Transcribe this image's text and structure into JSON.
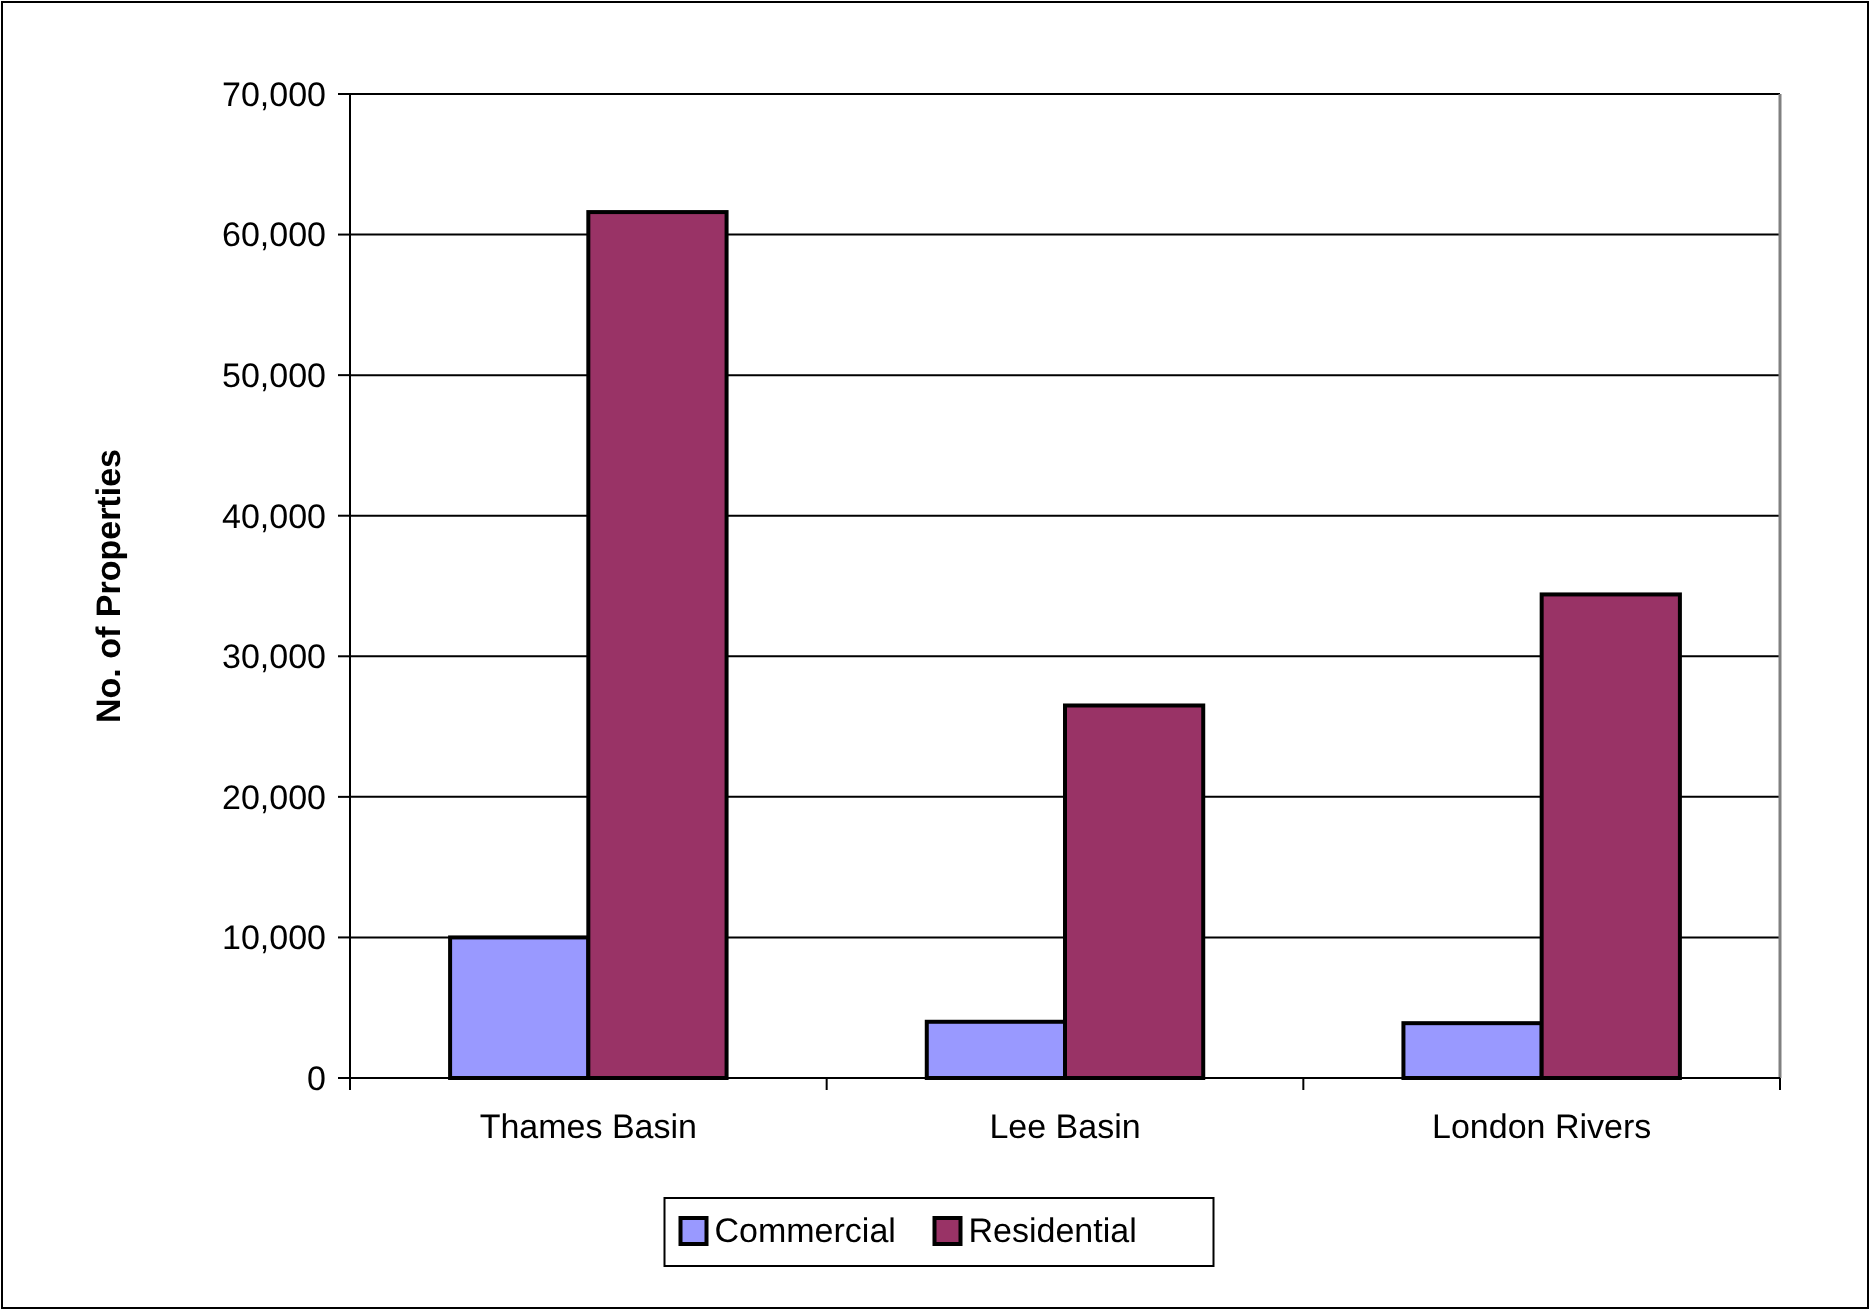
{
  "chart_data": {
    "type": "bar",
    "ylabel": "No. of Properties",
    "categories": [
      "Thames Basin",
      "Lee Basin",
      "London Rivers"
    ],
    "series": [
      {
        "name": "Commercial",
        "color": "#9999ff",
        "values": [
          10000,
          4000,
          3900
        ]
      },
      {
        "name": "Residential",
        "color": "#993366",
        "values": [
          61600,
          26500,
          34400
        ]
      }
    ],
    "ylim": [
      0,
      70000
    ],
    "yticks": [
      {
        "value": 0,
        "label": "0"
      },
      {
        "value": 10000,
        "label": "10,000"
      },
      {
        "value": 20000,
        "label": "20,000"
      },
      {
        "value": 30000,
        "label": "30,000"
      },
      {
        "value": 40000,
        "label": "40,000"
      },
      {
        "value": 50000,
        "label": "50,000"
      },
      {
        "value": 60000,
        "label": "60,000"
      },
      {
        "value": 70000,
        "label": "70,000"
      }
    ],
    "grid": "y",
    "legend": "bottom"
  }
}
